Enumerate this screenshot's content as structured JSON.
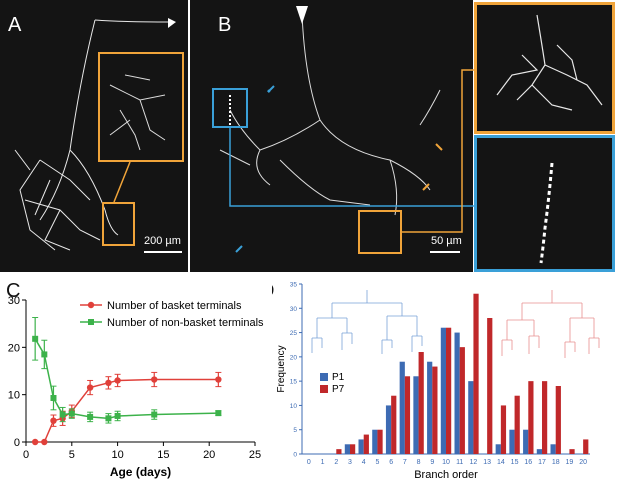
{
  "panels": {
    "a": {
      "label": "A",
      "scale": "200 µm"
    },
    "b": {
      "label": "B",
      "scale": "50 µm"
    },
    "c": {
      "label": "C"
    },
    "d": {
      "label": "D"
    }
  },
  "colors": {
    "orange": "#f0a43a",
    "blue": "#3aa0d8",
    "red": "#e0403a",
    "green": "#3cb24a",
    "p1": "#3d6bb3",
    "p7": "#c0282a"
  },
  "chart_data": [
    {
      "type": "line",
      "xlabel": "Age (days)",
      "ylabel": "",
      "xlim": [
        0,
        25
      ],
      "ylim": [
        0,
        30
      ],
      "xticks": [
        0,
        5,
        10,
        15,
        20,
        25
      ],
      "yticks": [
        0,
        10,
        20,
        30
      ],
      "legend_position": "top-right",
      "series": [
        {
          "name": "Number of basket terminals",
          "color": "#e0403a",
          "marker": "circle",
          "x": [
            1,
            2,
            3,
            4,
            5,
            7,
            9,
            10,
            14,
            21
          ],
          "y": [
            0,
            0,
            4.5,
            5,
            6.5,
            11.5,
            12.5,
            13,
            13.2,
            13.2
          ],
          "err": [
            0,
            0,
            1.2,
            1.5,
            1.3,
            1.5,
            1.3,
            1.3,
            1.5,
            1.5
          ]
        },
        {
          "name": "Number of non-basket terminals",
          "color": "#3cb24a",
          "marker": "square",
          "x": [
            1,
            2,
            3,
            4,
            5,
            7,
            9,
            10,
            14,
            21
          ],
          "y": [
            21.8,
            18.5,
            9.3,
            5.8,
            6,
            5.3,
            5,
            5.5,
            5.8,
            6.1
          ],
          "err": [
            4.5,
            3,
            2.5,
            1.5,
            1,
            1,
            1,
            1,
            1,
            0.5
          ]
        }
      ]
    },
    {
      "type": "bar",
      "xlabel": "Branch order",
      "ylabel": "Frequency",
      "ylim": [
        0,
        35
      ],
      "yticks": [
        0,
        5,
        10,
        15,
        20,
        25,
        30,
        35
      ],
      "categories": [
        "0",
        "1",
        "2",
        "3",
        "4",
        "5",
        "6",
        "7",
        "8",
        "9",
        "10",
        "11",
        "12",
        "13",
        "14",
        "15",
        "16",
        "17",
        "18",
        "19",
        "20"
      ],
      "legend_position": "left",
      "series": [
        {
          "name": "P1",
          "color": "#3d6bb3",
          "values": [
            0,
            0,
            0,
            2,
            3,
            5,
            10,
            19,
            16,
            19,
            26,
            25,
            15,
            0,
            2,
            5,
            5,
            1,
            2,
            0,
            0
          ]
        },
        {
          "name": "P7",
          "color": "#c0282a",
          "values": [
            0,
            0,
            1,
            2,
            4,
            5,
            12,
            16,
            21,
            18,
            26,
            22,
            33,
            28,
            10,
            12,
            15,
            15,
            14,
            1,
            3
          ]
        }
      ]
    }
  ]
}
